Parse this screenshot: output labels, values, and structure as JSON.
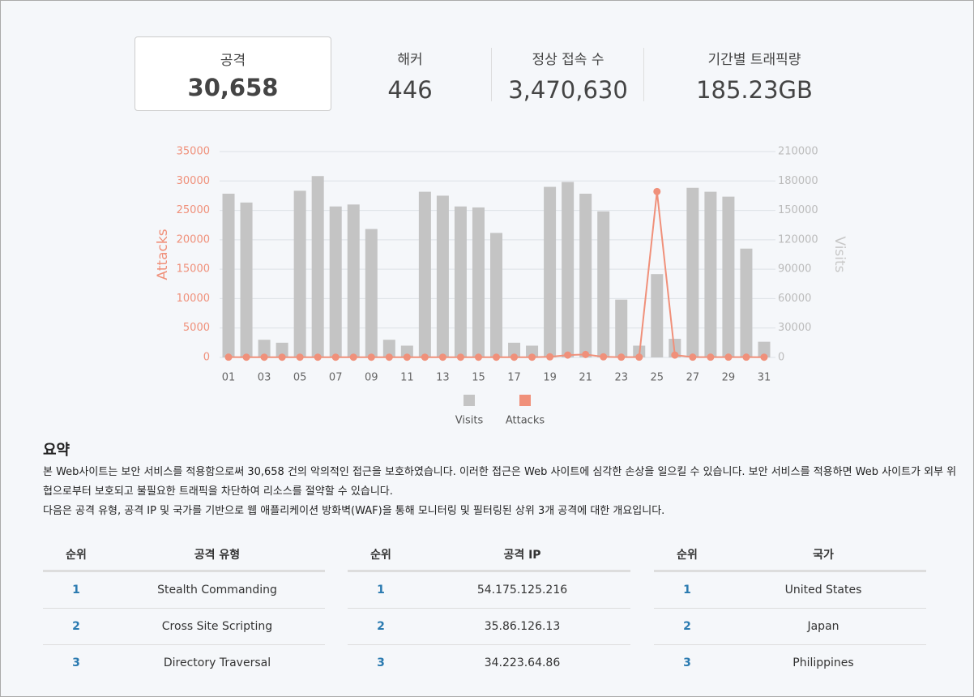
{
  "kpis": [
    {
      "label": "공격",
      "value": "30,658"
    },
    {
      "label": "해커",
      "value": "446"
    },
    {
      "label": "정상 접속 수",
      "value": "3,470,630"
    },
    {
      "label": "기간별 트래픽량",
      "value": "185.23GB"
    }
  ],
  "chart_data": {
    "type": "combo",
    "categories": [
      "01",
      null,
      "03",
      null,
      "05",
      null,
      "07",
      null,
      "09",
      null,
      "11",
      null,
      "13",
      null,
      "15",
      null,
      "17",
      null,
      "19",
      null,
      "21",
      null,
      "23",
      null,
      "25",
      null,
      "27",
      null,
      "29",
      null,
      "31"
    ],
    "ylabel": "Attacks",
    "y2label": "Visits",
    "ylim": [
      0,
      35000
    ],
    "yticks": [
      0,
      5000,
      10000,
      15000,
      20000,
      25000,
      30000,
      35000
    ],
    "y2lim": [
      0,
      210000
    ],
    "y2ticks": [
      0,
      30000,
      60000,
      90000,
      120000,
      150000,
      180000,
      210000
    ],
    "grid": true,
    "legend": "bottom",
    "series": [
      {
        "name": "Visits",
        "type": "bar",
        "axis": "y2",
        "color": "#c4c4c4",
        "values": [
          167000,
          158000,
          18000,
          15000,
          170000,
          185000,
          154000,
          156000,
          131000,
          18000,
          12000,
          169000,
          165000,
          154000,
          153000,
          127000,
          15000,
          12000,
          174000,
          179000,
          167000,
          149000,
          59000,
          12000,
          85000,
          19000,
          173000,
          169000,
          164000,
          111000,
          16000
        ]
      },
      {
        "name": "Attacks",
        "type": "line",
        "axis": "y",
        "color": "#f0907a",
        "values": [
          50,
          40,
          40,
          40,
          40,
          40,
          40,
          40,
          40,
          40,
          40,
          40,
          40,
          40,
          40,
          40,
          40,
          40,
          100,
          400,
          500,
          100,
          50,
          50,
          28200,
          400,
          50,
          50,
          50,
          50,
          40
        ]
      }
    ]
  },
  "summary": {
    "title": "요약",
    "paragraphs": [
      "본 Web사이트는 보안 서비스를 적용함으로써 30,658 건의 악의적인 접근을 보호하였습니다. 이러한 접근은 Web 사이트에 심각한 손상을 일으킬 수 있습니다. 보안 서비스를 적용하면 Web 사이트가 외부 위협으로부터 보호되고 불필요한 트래픽을 차단하여 리소스를 절약할 수 있습니다.",
      "다음은 공격 유형, 공격 IP 및 국가를 기반으로 웹 애플리케이션 방화벽(WAF)을 통해 모니터링 및 필터링된 상위 3개 공격에 대한 개요입니다."
    ]
  },
  "tables": [
    {
      "headers": [
        "순위",
        "공격 유형"
      ],
      "rows": [
        [
          1,
          "Stealth Commanding"
        ],
        [
          2,
          "Cross Site Scripting"
        ],
        [
          3,
          "Directory Traversal"
        ]
      ]
    },
    {
      "headers": [
        "순위",
        "공격 IP"
      ],
      "rows": [
        [
          1,
          "54.175.125.216"
        ],
        [
          2,
          "35.86.126.13"
        ],
        [
          3,
          "34.223.64.86"
        ]
      ]
    },
    {
      "headers": [
        "순위",
        "국가"
      ],
      "rows": [
        [
          1,
          "United States"
        ],
        [
          2,
          "Japan"
        ],
        [
          3,
          "Philippines"
        ]
      ]
    }
  ]
}
